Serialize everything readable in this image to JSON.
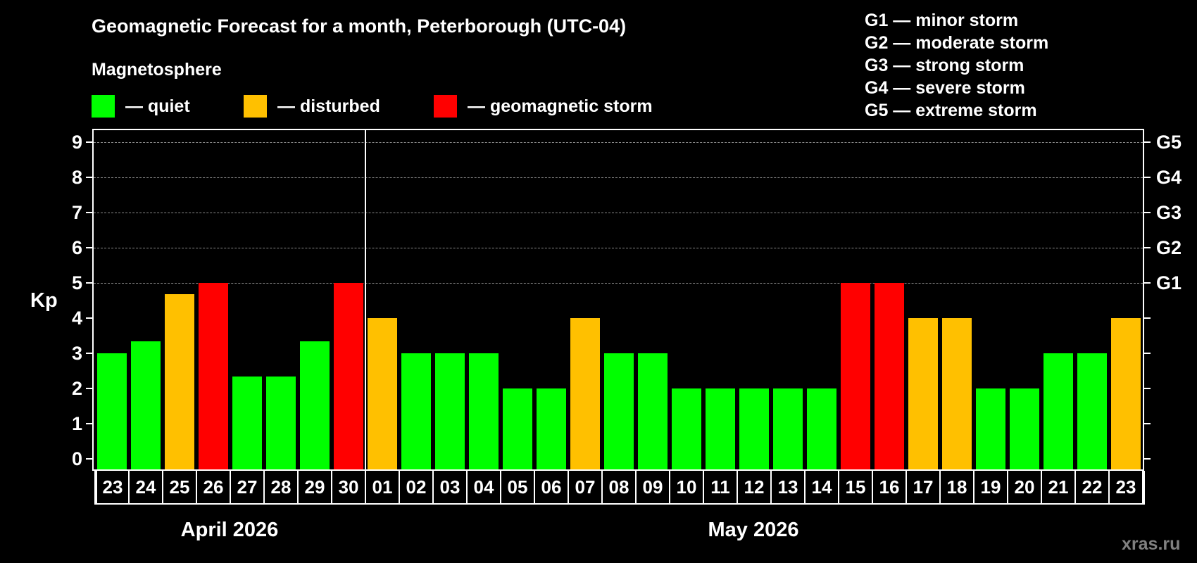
{
  "header": {
    "title": "Geomagnetic Forecast for a month, Peterborough (UTC-04)",
    "subtitle": "Magnetosphere"
  },
  "legend": [
    {
      "label": "— quiet",
      "color": "#00ff00"
    },
    {
      "label": "— disturbed",
      "color": "#ffc000"
    },
    {
      "label": "— geomagnetic storm",
      "color": "#ff0000"
    }
  ],
  "storm_scale": [
    "G1 — minor storm",
    "G2 — moderate storm",
    "G3 — strong storm",
    "G4 — severe storm",
    "G5 — extreme storm"
  ],
  "axis": {
    "ylabel": "Kp",
    "yticks": [
      "0",
      "1",
      "2",
      "3",
      "4",
      "5",
      "6",
      "7",
      "8",
      "9"
    ],
    "right_ticks": [
      {
        "kp": 5,
        "label": "G1"
      },
      {
        "kp": 6,
        "label": "G2"
      },
      {
        "kp": 7,
        "label": "G3"
      },
      {
        "kp": 8,
        "label": "G4"
      },
      {
        "kp": 9,
        "label": "G5"
      }
    ]
  },
  "months": [
    {
      "label": "April 2026"
    },
    {
      "label": "May 2026"
    }
  ],
  "watermark": "xras.ru",
  "colors": {
    "quiet": "#00ff00",
    "disturbed": "#ffc000",
    "storm": "#ff0000",
    "background": "#000000",
    "grid": "#8a8a8a",
    "watermark": "#808080"
  },
  "chart_data": {
    "type": "bar",
    "title": "Geomagnetic Forecast for a month, Peterborough (UTC-04)",
    "subtitle": "Magnetosphere",
    "xlabel": "",
    "ylabel": "Kp",
    "ylim": [
      0,
      9
    ],
    "grid": "dashed horizontal at Kp 5-9",
    "legend_position": "top",
    "categories": [
      "23",
      "24",
      "25",
      "26",
      "27",
      "28",
      "29",
      "30",
      "01",
      "02",
      "03",
      "04",
      "05",
      "06",
      "07",
      "08",
      "09",
      "10",
      "11",
      "12",
      "13",
      "14",
      "15",
      "16",
      "17",
      "18",
      "19",
      "20",
      "21",
      "22",
      "23"
    ],
    "month_groups": [
      {
        "label": "April 2026",
        "from_index": 0,
        "to_index": 7
      },
      {
        "label": "May 2026",
        "from_index": 8,
        "to_index": 30
      }
    ],
    "values": [
      3.0,
      3.33,
      4.67,
      5.0,
      2.33,
      2.33,
      3.33,
      5.0,
      4.0,
      3.0,
      3.0,
      3.0,
      2.0,
      2.0,
      4.0,
      3.0,
      3.0,
      2.0,
      2.0,
      2.0,
      2.0,
      2.0,
      5.0,
      5.0,
      4.0,
      4.0,
      2.0,
      2.0,
      3.0,
      3.0,
      4.0
    ],
    "status": [
      "quiet",
      "quiet",
      "disturbed",
      "storm",
      "quiet",
      "quiet",
      "quiet",
      "storm",
      "disturbed",
      "quiet",
      "quiet",
      "quiet",
      "quiet",
      "quiet",
      "disturbed",
      "quiet",
      "quiet",
      "quiet",
      "quiet",
      "quiet",
      "quiet",
      "quiet",
      "storm",
      "storm",
      "disturbed",
      "disturbed",
      "quiet",
      "quiet",
      "quiet",
      "quiet",
      "disturbed"
    ],
    "right_axis": {
      "5": "G1",
      "6": "G2",
      "7": "G3",
      "8": "G4",
      "9": "G5"
    }
  }
}
